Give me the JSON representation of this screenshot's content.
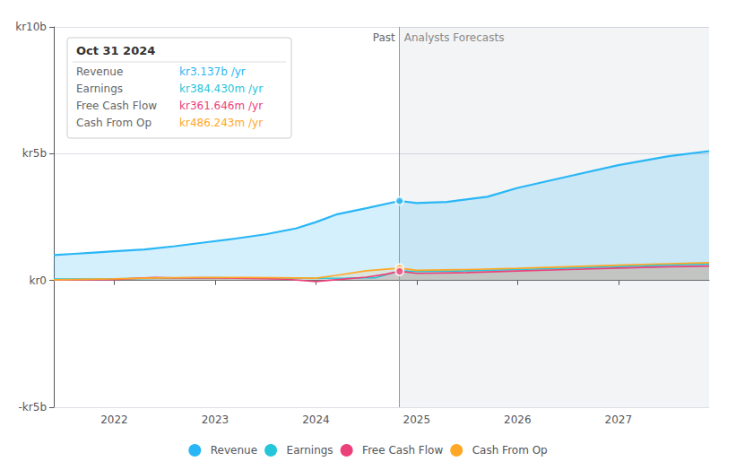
{
  "chart_data": {
    "type": "area",
    "xlim": [
      2021.4,
      2027.9
    ],
    "xticks": [
      2022,
      2023,
      2024,
      2025,
      2026,
      2027
    ],
    "ylim": [
      -5000000000.0,
      10000000000.0
    ],
    "yticks": [
      {
        "value": -5000000000.0,
        "label": "-kr5b"
      },
      {
        "value": 0,
        "label": "kr0"
      },
      {
        "value": 5000000000.0,
        "label": "kr5b"
      },
      {
        "value": 10000000000.0,
        "label": "kr10b"
      }
    ],
    "grid": true,
    "legend": "bottom",
    "series": [
      {
        "name": "Revenue",
        "color": "#29b6f6",
        "x": [
          2021.4,
          2021.6,
          2021.8,
          2022.0,
          2022.3,
          2022.6,
          2022.9,
          2023.2,
          2023.5,
          2023.8,
          2024.0,
          2024.2,
          2024.5,
          2024.83,
          2024.83,
          2025.0,
          2025.3,
          2025.7,
          2026.0,
          2026.5,
          2027.0,
          2027.5,
          2027.9
        ],
        "values": [
          1000000000.0,
          1050000000.0,
          1100000000.0,
          1150000000.0,
          1220000000.0,
          1350000000.0,
          1500000000.0,
          1650000000.0,
          1820000000.0,
          2050000000.0,
          2300000000.0,
          2600000000.0,
          2850000000.0,
          3137000000.0,
          3137000000.0,
          3050000000.0,
          3100000000.0,
          3300000000.0,
          3650000000.0,
          4100000000.0,
          4550000000.0,
          4900000000.0,
          5100000000.0
        ]
      },
      {
        "name": "Earnings",
        "color": "#26c6da",
        "x": [
          2021.4,
          2022.0,
          2022.3,
          2022.6,
          2022.9,
          2023.0,
          2023.3,
          2023.6,
          2023.9,
          2024.0,
          2024.3,
          2024.6,
          2024.83,
          2024.83,
          2025.0,
          2025.5,
          2026.0,
          2026.5,
          2027.0,
          2027.5,
          2027.9
        ],
        "values": [
          55000000.0,
          65000000.0,
          80000000.0,
          95000000.0,
          100000000.0,
          105000000.0,
          100000000.0,
          95000000.0,
          90000000.0,
          85000000.0,
          95000000.0,
          110000000.0,
          384430000.0,
          384430000.0,
          350000000.0,
          380000000.0,
          430000000.0,
          490000000.0,
          550000000.0,
          610000000.0,
          650000000.0
        ]
      },
      {
        "name": "Free Cash Flow",
        "color": "#ec407a",
        "x": [
          2021.4,
          2022.0,
          2022.2,
          2022.4,
          2022.6,
          2022.9,
          2023.0,
          2023.2,
          2023.5,
          2023.7,
          2024.0,
          2024.2,
          2024.5,
          2024.7,
          2024.83,
          2024.83,
          2025.0,
          2025.5,
          2026.0,
          2026.5,
          2027.0,
          2027.5,
          2027.9
        ],
        "values": [
          20000000.0,
          40000000.0,
          80000000.0,
          120000000.0,
          100000000.0,
          110000000.0,
          100000000.0,
          90000000.0,
          70000000.0,
          50000000.0,
          -40000000.0,
          30000000.0,
          130000000.0,
          250000000.0,
          361646000.0,
          361646000.0,
          280000000.0,
          310000000.0,
          370000000.0,
          430000000.0,
          490000000.0,
          540000000.0,
          570000000.0
        ]
      },
      {
        "name": "Cash From Op",
        "color": "#ffa726",
        "x": [
          2021.4,
          2022.0,
          2022.3,
          2022.6,
          2023.0,
          2023.3,
          2023.6,
          2024.0,
          2024.2,
          2024.5,
          2024.83,
          2024.83,
          2025.0,
          2025.5,
          2026.0,
          2026.5,
          2027.0,
          2027.5,
          2027.9
        ],
        "values": [
          30000000.0,
          60000000.0,
          90000000.0,
          110000000.0,
          120000000.0,
          115000000.0,
          110000000.0,
          90000000.0,
          200000000.0,
          380000000.0,
          486243000.0,
          486243000.0,
          400000000.0,
          430000000.0,
          480000000.0,
          540000000.0,
          600000000.0,
          660000000.0,
          700000000.0
        ]
      }
    ],
    "divider": {
      "x": 2024.83,
      "labels": [
        "Past",
        "Analysts Forecasts"
      ],
      "points": [
        {
          "series": "Revenue",
          "y": 3137000000.0
        },
        {
          "series": "Cash From Op",
          "y": 486243000.0
        },
        {
          "series": "Free Cash Flow",
          "y": 361646000.0
        }
      ]
    },
    "info_box": {
      "title": "Oct 31 2024",
      "rows": [
        {
          "label": "Revenue",
          "value": "kr3.137b /yr",
          "color": "#29b6f6"
        },
        {
          "label": "Earnings",
          "value": "kr384.430m /yr",
          "color": "#26c6da"
        },
        {
          "label": "Free Cash Flow",
          "value": "kr361.646m /yr",
          "color": "#ec407a"
        },
        {
          "label": "Cash From Op",
          "value": "kr486.243m /yr",
          "color": "#ffa726"
        }
      ]
    }
  }
}
